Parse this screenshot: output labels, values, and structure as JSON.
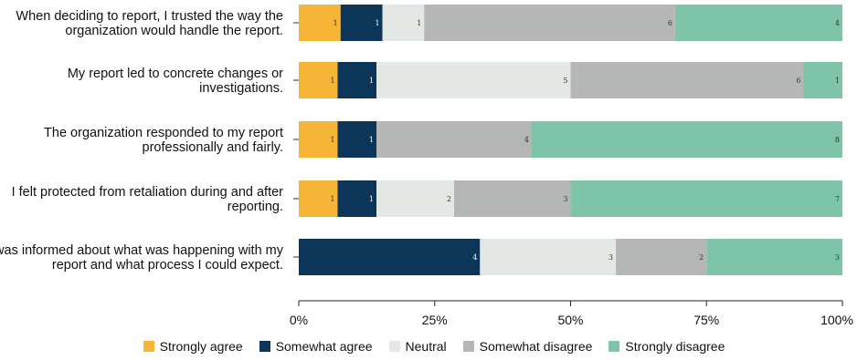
{
  "chart_data": {
    "type": "bar",
    "orientation": "horizontal",
    "stacked": "percent",
    "categories": [
      [
        "When deciding to report, I trusted the way the",
        "organization would handle the report."
      ],
      [
        "My report led to concrete changes or",
        "investigations."
      ],
      [
        "The organization responded to my report",
        "professionally and fairly."
      ],
      [
        "I felt protected from retaliation during and after",
        "reporting."
      ],
      [
        "I was informed about what was happening with my",
        "report and what process I could expect."
      ]
    ],
    "series": [
      {
        "name": "Strongly agree",
        "color": "#f7b538",
        "label_color": "#333333",
        "values": [
          1,
          1,
          1,
          1,
          0
        ]
      },
      {
        "name": "Somewhat agree",
        "color": "#0c3659",
        "label_color": "#ffffff",
        "values": [
          1,
          1,
          1,
          1,
          4
        ]
      },
      {
        "name": "Neutral",
        "color": "#e4e8e4",
        "label_color": "#333333",
        "values": [
          1,
          5,
          0,
          2,
          3
        ]
      },
      {
        "name": "Somewhat disagree",
        "color": "#b5b7b7",
        "label_color": "#333333",
        "values": [
          6,
          6,
          4,
          3,
          2
        ]
      },
      {
        "name": "Strongly disagree",
        "color": "#7dc4a9",
        "label_color": "#333333",
        "values": [
          4,
          1,
          8,
          7,
          3
        ]
      }
    ],
    "x_ticks": [
      "0%",
      "25%",
      "50%",
      "75%",
      "100%"
    ],
    "xlim": [
      0,
      100
    ],
    "legend": "bottom",
    "grid": false
  }
}
